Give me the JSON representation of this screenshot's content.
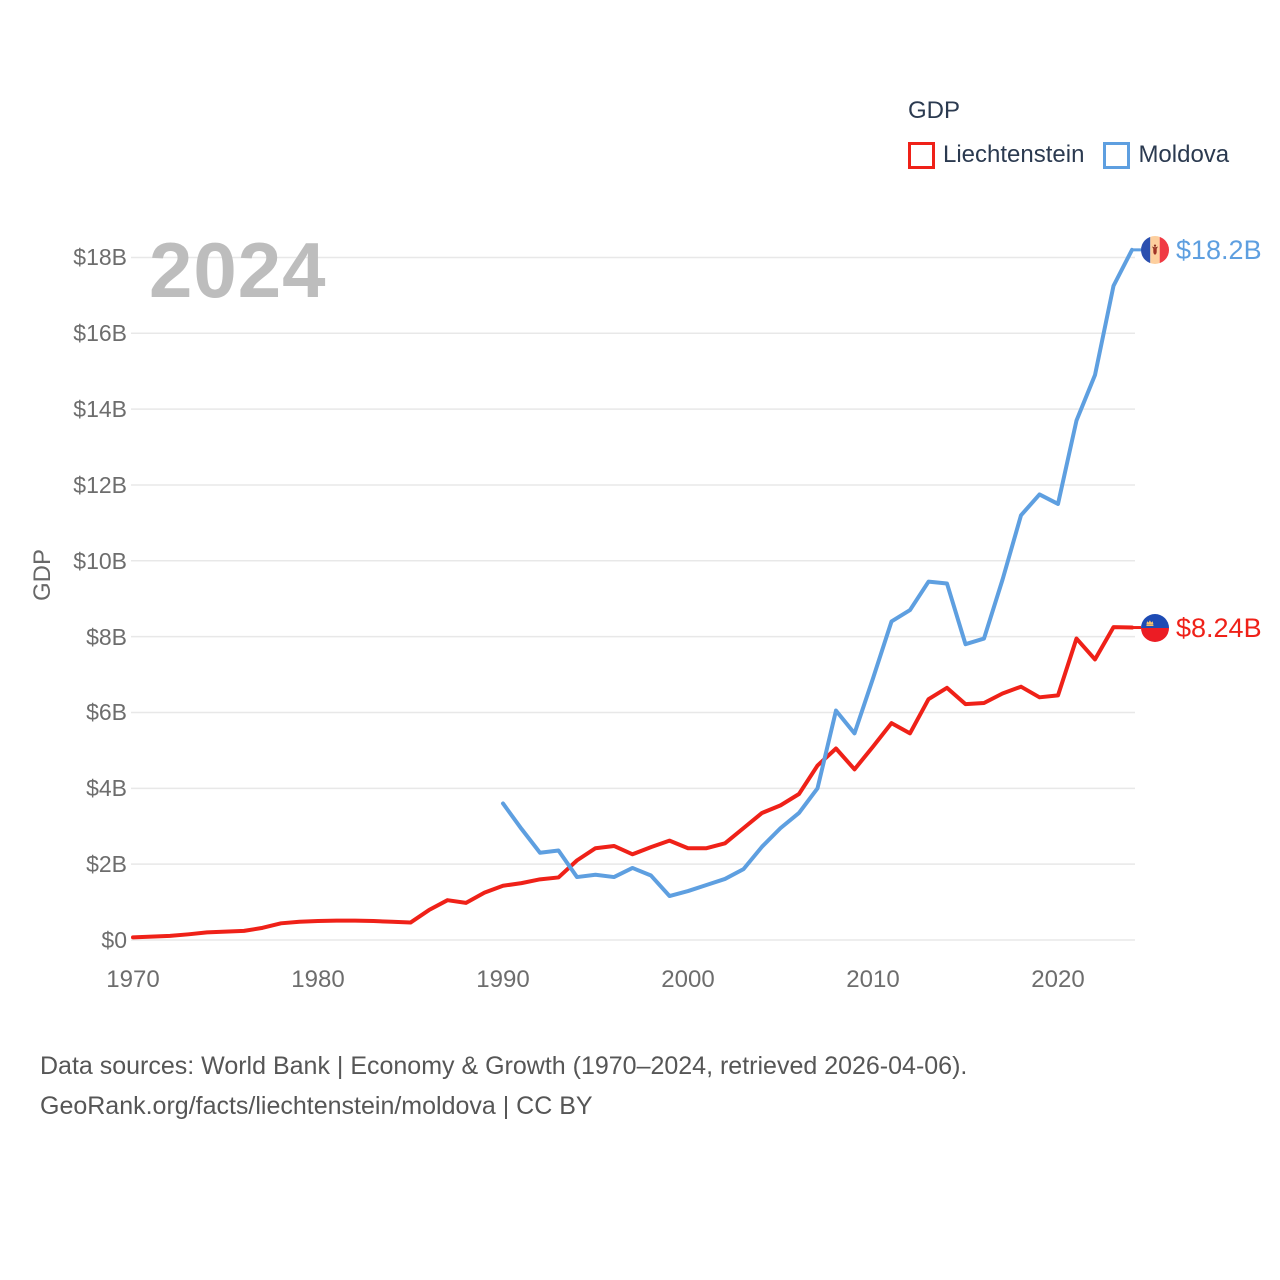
{
  "watermark": "2024",
  "legend": {
    "title": "GDP",
    "items": [
      {
        "label": "Liechtenstein",
        "color": "#ef2118"
      },
      {
        "label": "Moldova",
        "color": "#5e9fe0"
      }
    ]
  },
  "axes": {
    "y_title": "GDP",
    "y_ticks": [
      "$0",
      "$2B",
      "$4B",
      "$6B",
      "$8B",
      "$10B",
      "$12B",
      "$14B",
      "$16B",
      "$18B"
    ],
    "x_ticks": [
      "1970",
      "1980",
      "1990",
      "2000",
      "2010",
      "2020"
    ]
  },
  "end_labels": {
    "moldova": "$18.2B",
    "liechtenstein": "$8.24B"
  },
  "footer": {
    "line1": "Data sources: World Bank | Economy & Growth (1970–2024, retrieved 2026-04-06).",
    "line2": "GeoRank.org/facts/liechtenstein/moldova | CC BY"
  },
  "chart_data": {
    "type": "line",
    "title": "GDP",
    "xlabel": "",
    "ylabel": "GDP",
    "xlim": [
      1970,
      2024
    ],
    "ylim": [
      0,
      18.6
    ],
    "grid": "horizontal",
    "legend_position": "top-right",
    "x_tick_values": [
      1970,
      1980,
      1990,
      2000,
      2010,
      2020
    ],
    "y_tick_values": [
      0,
      2,
      4,
      6,
      8,
      10,
      12,
      14,
      16,
      18
    ],
    "y_tick_labels": [
      "$0",
      "$2B",
      "$4B",
      "$6B",
      "$8B",
      "$10B",
      "$12B",
      "$14B",
      "$16B",
      "$18B"
    ],
    "unit": "billion USD",
    "series": [
      {
        "name": "Liechtenstein",
        "color": "#ef2118",
        "start_year": 1970,
        "end_label": "$8.24B",
        "values": [
          0.07,
          0.09,
          0.11,
          0.15,
          0.2,
          0.22,
          0.24,
          0.32,
          0.44,
          0.48,
          0.5,
          0.51,
          0.51,
          0.5,
          0.48,
          0.46,
          0.79,
          1.05,
          0.98,
          1.25,
          1.43,
          1.5,
          1.6,
          1.65,
          2.1,
          2.42,
          2.48,
          2.26,
          2.45,
          2.62,
          2.42,
          2.42,
          2.55,
          2.95,
          3.35,
          3.55,
          3.85,
          4.6,
          5.05,
          4.5,
          5.1,
          5.72,
          5.45,
          6.35,
          6.65,
          6.22,
          6.25,
          6.5,
          6.68,
          6.4,
          6.45,
          7.95,
          7.4,
          8.25,
          8.24
        ]
      },
      {
        "name": "Moldova",
        "color": "#5e9fe0",
        "start_year": 1990,
        "end_label": "$18.2B",
        "values": [
          3.6,
          2.93,
          2.3,
          2.36,
          1.66,
          1.72,
          1.66,
          1.9,
          1.7,
          1.16,
          1.29,
          1.45,
          1.61,
          1.87,
          2.46,
          2.95,
          3.35,
          4.0,
          6.05,
          5.45,
          6.9,
          8.4,
          8.7,
          9.45,
          9.4,
          7.8,
          7.95,
          9.5,
          11.2,
          11.75,
          11.5,
          13.7,
          14.9,
          17.25,
          18.2
        ]
      }
    ]
  }
}
